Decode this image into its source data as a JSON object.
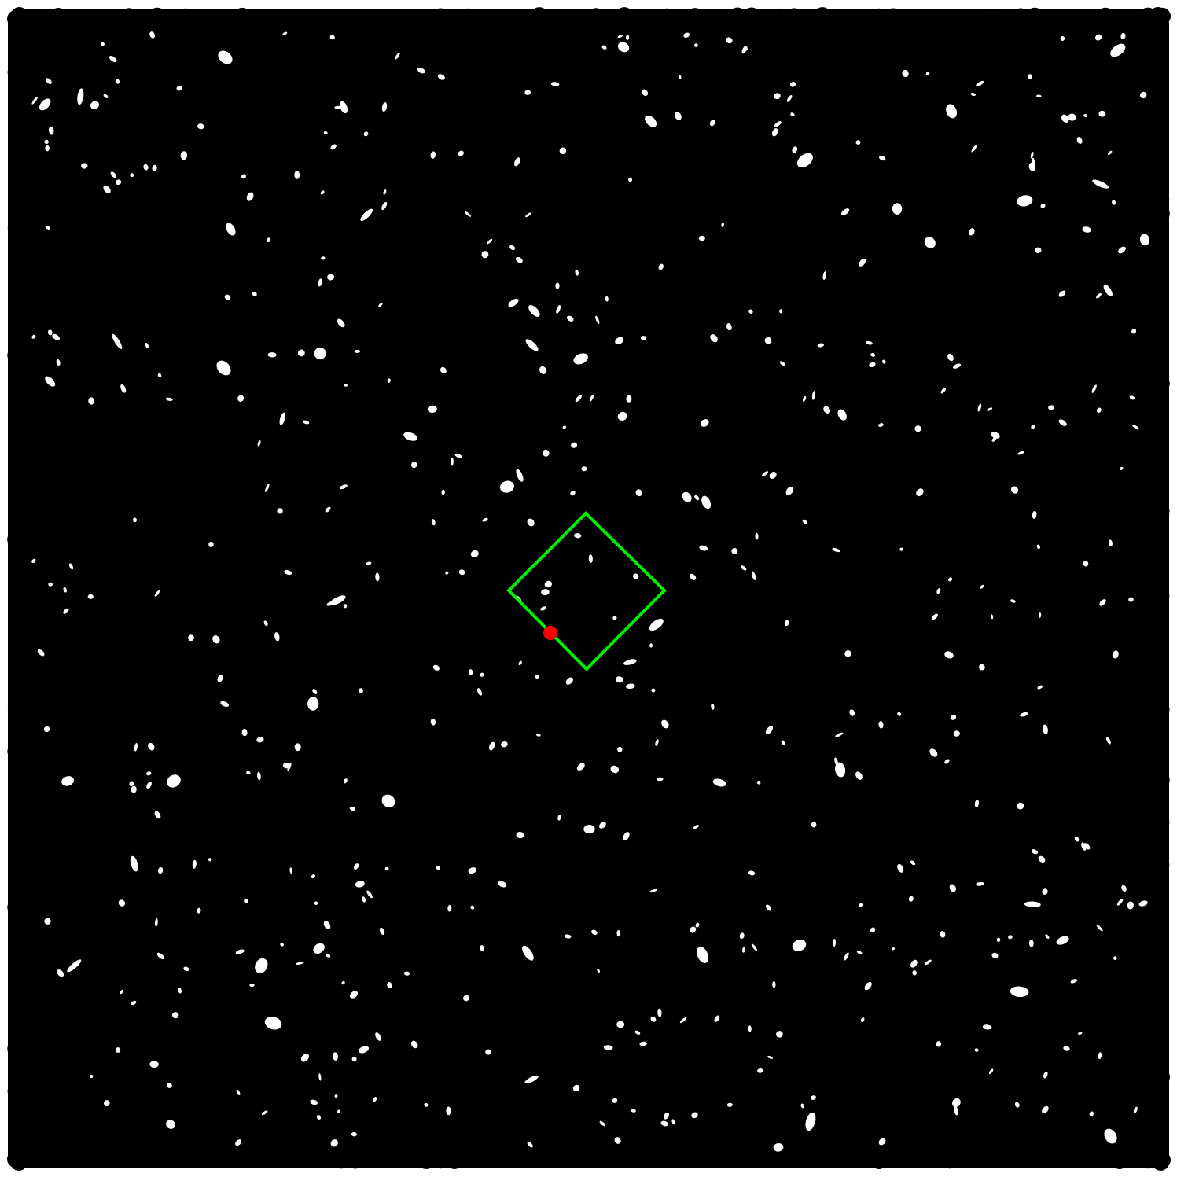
{
  "scene": {
    "background_color": "#ffffff",
    "particle_color": "#000000",
    "outline_color": "#00ee00",
    "marker_color": "#ff0000",
    "pack_density": 0.97
  },
  "shapes": {
    "outline": "diamond",
    "marker": "dot"
  }
}
